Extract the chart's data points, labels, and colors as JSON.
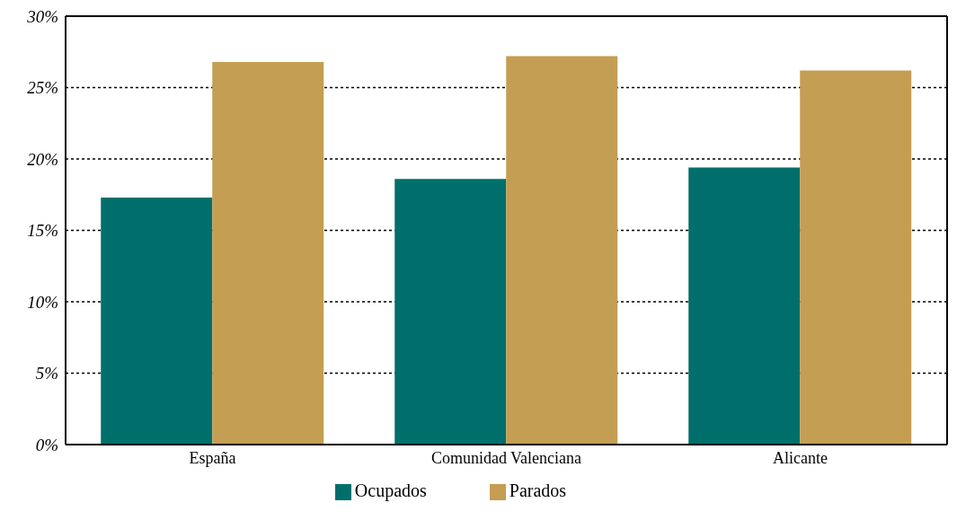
{
  "chart_data": {
    "type": "bar",
    "categories": [
      "España",
      "Comunidad Valenciana",
      "Alicante"
    ],
    "series": [
      {
        "name": "Ocupados",
        "color": "#006f6c",
        "values": [
          17.3,
          18.6,
          19.4
        ]
      },
      {
        "name": "Parados",
        "color": "#c49e52",
        "values": [
          26.8,
          27.2,
          26.2
        ]
      }
    ],
    "ylim": [
      0,
      30
    ],
    "yticks": [
      {
        "value": 0,
        "label": "0%"
      },
      {
        "value": 5,
        "label": "5%"
      },
      {
        "value": 10,
        "label": "10%"
      },
      {
        "value": 15,
        "label": "15%"
      },
      {
        "value": 20,
        "label": "20%"
      },
      {
        "value": 25,
        "label": "25%"
      },
      {
        "value": 30,
        "label": "30%"
      }
    ],
    "grid": "y",
    "legend": "bottom"
  }
}
